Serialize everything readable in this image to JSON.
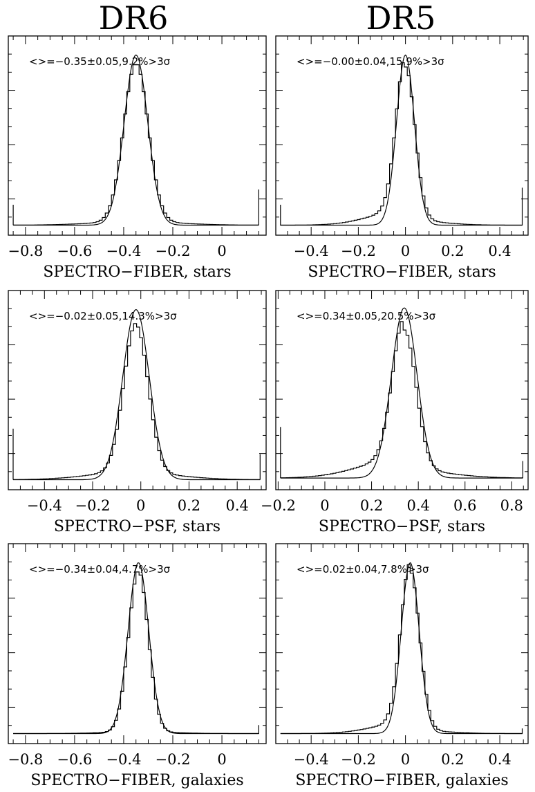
{
  "column_titles": [
    "DR6",
    "DR5"
  ],
  "chart_data": [
    {
      "type": "histogram",
      "panel": "DR6",
      "xlabel": "SPECTRO−FIBER, stars",
      "annotation": "<>=−0.35±0.05,9.2%>3σ",
      "xlim": [
        -0.87,
        0.18
      ],
      "xticks": [
        -0.8,
        -0.6,
        -0.4,
        -0.2,
        0
      ],
      "xtick_labels": [
        "−0.8",
        "−0.6",
        "−0.4",
        "−0.2",
        "0"
      ],
      "center": -0.35,
      "sigma": 0.05,
      "fit_sigma": 0.048,
      "peak_fraction": 0.93,
      "fit_peak_fraction": 1.0,
      "baseline_fraction": 0.01,
      "left_tail_fraction": 0.02,
      "right_tail_fraction": 0.02,
      "left_bin_spike": 0.12,
      "right_bin_spike": 0.21
    },
    {
      "type": "histogram",
      "panel": "DR5",
      "xlabel": "SPECTRO−FIBER, stars",
      "annotation": "<>=−0.00±0.04,15.9%>3σ",
      "xlim": [
        -0.55,
        0.52
      ],
      "xticks": [
        -0.4,
        -0.2,
        0,
        0.2,
        0.4
      ],
      "xtick_labels": [
        "−0.4",
        "−0.2",
        "0",
        "0.2",
        "0.4"
      ],
      "center": 0.0,
      "sigma": 0.04,
      "fit_sigma": 0.038,
      "peak_fraction": 0.9,
      "fit_peak_fraction": 1.0,
      "baseline_fraction": 0.01,
      "left_tail_fraction": 0.09,
      "right_tail_fraction": 0.03,
      "left_bin_spike": 0.12,
      "right_bin_spike": 0.22
    },
    {
      "type": "histogram",
      "panel": "DR6",
      "xlabel": "SPECTRO−PSF, stars",
      "annotation": "<>=−0.02±0.05,14.3%>3σ",
      "xlim": [
        -0.55,
        0.52
      ],
      "xticks": [
        -0.4,
        -0.2,
        0,
        0.2,
        0.4
      ],
      "xtick_labels": [
        "−0.4",
        "−0.2",
        "0",
        "0.2",
        "0.4"
      ],
      "center": -0.02,
      "sigma": 0.05,
      "fit_sigma": 0.055,
      "peak_fraction": 0.87,
      "fit_peak_fraction": 1.0,
      "baseline_fraction": 0.01,
      "left_tail_fraction": 0.05,
      "right_tail_fraction": 0.04,
      "left_bin_spike": 0.3,
      "right_bin_spike": 0.15
    },
    {
      "type": "histogram",
      "panel": "DR5",
      "xlabel": "SPECTRO−PSF, stars",
      "annotation": "<>=0.34±0.05,20.5%>3σ",
      "xlim": [
        -0.21,
        0.87
      ],
      "xticks": [
        -0.2,
        0,
        0.2,
        0.4,
        0.6,
        0.8
      ],
      "xtick_labels": [
        "−0.2",
        "0",
        "0.2",
        "0.4",
        "0.6",
        "0.8"
      ],
      "center": 0.34,
      "sigma": 0.05,
      "fit_sigma": 0.055,
      "peak_fraction": 0.82,
      "fit_peak_fraction": 1.0,
      "baseline_fraction": 0.02,
      "left_tail_fraction": 0.12,
      "right_tail_fraction": 0.05,
      "left_bin_spike": 0.3,
      "right_bin_spike": 0.1
    },
    {
      "type": "histogram",
      "panel": "DR6",
      "xlabel": "SPECTRO−FIBER, galaxies",
      "annotation": "<>=−0.34±0.04,4.7%>3σ",
      "xlim": [
        -0.87,
        0.18
      ],
      "xticks": [
        -0.8,
        -0.6,
        -0.4,
        -0.2,
        0
      ],
      "xtick_labels": [
        "−0.8",
        "−0.6",
        "−0.4",
        "−0.2",
        "0"
      ],
      "center": -0.34,
      "sigma": 0.04,
      "fit_sigma": 0.042,
      "peak_fraction": 0.94,
      "fit_peak_fraction": 1.0,
      "baseline_fraction": 0.01,
      "left_tail_fraction": 0.01,
      "right_tail_fraction": 0.01,
      "left_bin_spike": 0.0,
      "right_bin_spike": 0.05
    },
    {
      "type": "histogram",
      "panel": "DR5",
      "xlabel": "SPECTRO−FIBER, galaxies",
      "annotation": "<>=0.02±0.04,7.8%>3σ",
      "xlim": [
        -0.55,
        0.52
      ],
      "xticks": [
        -0.4,
        -0.2,
        0,
        0.2,
        0.4
      ],
      "xtick_labels": [
        "−0.4",
        "−0.2",
        "0",
        "0.2",
        "0.4"
      ],
      "center": 0.02,
      "sigma": 0.04,
      "fit_sigma": 0.038,
      "peak_fraction": 0.93,
      "fit_peak_fraction": 1.0,
      "baseline_fraction": 0.01,
      "left_tail_fraction": 0.07,
      "right_tail_fraction": 0.02,
      "left_bin_spike": 0.0,
      "right_bin_spike": 0.03
    }
  ],
  "row_boundary_labels": [
    "0.4 −",
    "0.2"
  ]
}
